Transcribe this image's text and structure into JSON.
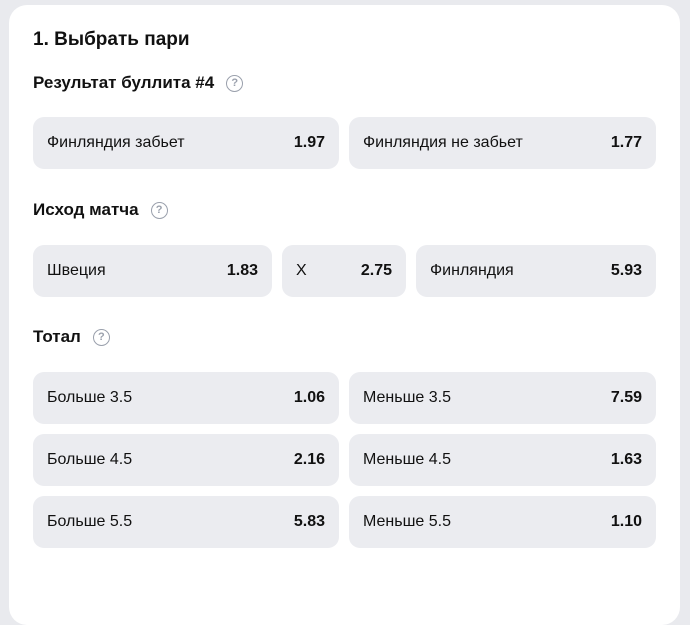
{
  "title": "1. Выбрать пари",
  "sections": [
    {
      "label": "Результат буллита #4",
      "help_icon": "question-circle-icon",
      "options": [
        {
          "label": "Финляндия забьет",
          "odd": "1.97"
        },
        {
          "label": "Финляндия не забьет",
          "odd": "1.77"
        }
      ]
    },
    {
      "label": "Исход матча",
      "help_icon": "question-circle-icon",
      "options": [
        {
          "label": "Швеция",
          "odd": "1.83"
        },
        {
          "label": "X",
          "odd": "2.75"
        },
        {
          "label": "Финляндия",
          "odd": "5.93"
        }
      ]
    },
    {
      "label": "Тотал",
      "help_icon": "question-circle-icon",
      "options": [
        {
          "label": "Больше 3.5",
          "odd": "1.06"
        },
        {
          "label": "Меньше 3.5",
          "odd": "7.59"
        },
        {
          "label": "Больше 4.5",
          "odd": "2.16"
        },
        {
          "label": "Меньше 4.5",
          "odd": "1.63"
        },
        {
          "label": "Больше 5.5",
          "odd": "5.83"
        },
        {
          "label": "Меньше 5.5",
          "odd": "1.10"
        }
      ]
    }
  ]
}
